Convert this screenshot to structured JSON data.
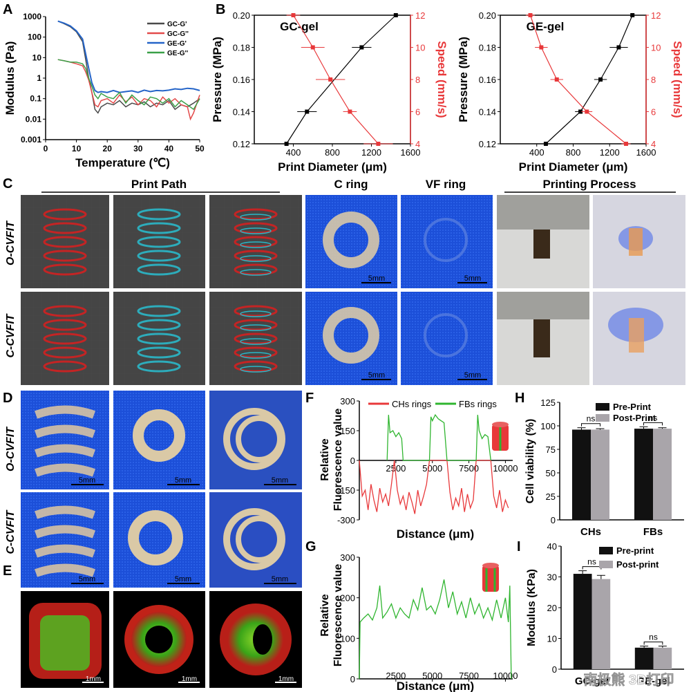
{
  "panels": {
    "A": "A",
    "B": "B",
    "C": "C",
    "D": "D",
    "E": "E",
    "F": "F",
    "G": "G",
    "H": "H",
    "I": "I"
  },
  "colors": {
    "gc_gp": "#4a4a4a",
    "gc_gpp": "#e34a4a",
    "ge_gp": "#2464c8",
    "ge_gpp": "#3aa048",
    "red": "#e8383a",
    "green": "#2fb52f",
    "black": "#111111",
    "gray": "#a9a5aa"
  },
  "panel_c": {
    "print_path": "Print Path",
    "c_ring": "C ring",
    "vf_ring": "VF ring",
    "printing_process": "Printing Process",
    "row1": "O-CVFIT",
    "row2": "C-CVFIT",
    "scale": "5mm"
  },
  "panel_d": {
    "row1": "O-CVFIT",
    "row2": "C-CVFIT",
    "scale": "5mm"
  },
  "panel_e": {
    "scale": "1mm"
  },
  "watermark": "南极熊 3D打印",
  "chart_data": [
    {
      "id": "A",
      "type": "line",
      "xlabel": "Temperature (℃)",
      "ylabel": "Modulus (Pa)",
      "xlim": [
        0,
        50
      ],
      "ylim": [
        0.001,
        1000
      ],
      "yscale": "log",
      "xticks": [
        0,
        10,
        20,
        30,
        40,
        50
      ],
      "yticks": [
        "0.001",
        "0.01",
        "0.1",
        "1",
        "10",
        "100",
        "1000"
      ],
      "legend": [
        "GC-G'",
        "GC-G''",
        "GE-G'",
        "GE-G''"
      ],
      "series": [
        {
          "name": "GC-G'",
          "x": [
            4,
            6,
            8,
            10,
            12,
            13,
            14,
            15,
            16,
            17,
            18,
            20,
            22,
            24,
            26,
            28,
            30,
            32,
            34,
            36,
            38,
            40,
            42,
            44,
            46,
            48,
            50
          ],
          "y": [
            600,
            450,
            320,
            180,
            60,
            8,
            1,
            0.2,
            0.03,
            0.02,
            0.04,
            0.06,
            0.05,
            0.08,
            0.04,
            0.06,
            0.05,
            0.07,
            0.04,
            0.06,
            0.05,
            0.08,
            0.03,
            0.05,
            0.04,
            0.06,
            0.1
          ]
        },
        {
          "name": "GC-G''",
          "x": [
            4,
            6,
            8,
            10,
            12,
            13,
            14,
            15,
            16,
            17,
            18,
            20,
            22,
            24,
            26,
            28,
            30,
            32,
            34,
            36,
            38,
            40,
            42,
            44,
            46,
            47,
            48,
            50
          ],
          "y": [
            8,
            7,
            6,
            5,
            4,
            2,
            0.8,
            0.2,
            0.05,
            0.04,
            0.08,
            0.1,
            0.06,
            0.15,
            0.07,
            0.12,
            0.05,
            0.1,
            0.08,
            0.04,
            0.12,
            0.06,
            0.1,
            0.05,
            0.04,
            0.01,
            0.02,
            0.15
          ]
        },
        {
          "name": "GE-G'",
          "x": [
            4,
            6,
            8,
            10,
            12,
            13,
            14,
            15,
            16,
            17,
            18,
            20,
            22,
            24,
            26,
            28,
            30,
            32,
            34,
            36,
            38,
            40,
            42,
            44,
            46,
            48,
            50
          ],
          "y": [
            600,
            480,
            350,
            200,
            80,
            15,
            3,
            0.6,
            0.25,
            0.2,
            0.22,
            0.2,
            0.25,
            0.2,
            0.22,
            0.24,
            0.2,
            0.26,
            0.22,
            0.25,
            0.24,
            0.26,
            0.3,
            0.28,
            0.32,
            0.3,
            0.25
          ]
        },
        {
          "name": "GE-G''",
          "x": [
            4,
            6,
            8,
            10,
            12,
            13,
            14,
            15,
            16,
            17,
            18,
            20,
            22,
            24,
            26,
            28,
            30,
            32,
            34,
            36,
            38,
            40,
            42,
            44,
            46,
            48,
            50
          ],
          "y": [
            8,
            7,
            6,
            6,
            5,
            3,
            1,
            0.4,
            0.15,
            0.1,
            0.18,
            0.12,
            0.1,
            0.2,
            0.06,
            0.15,
            0.08,
            0.05,
            0.12,
            0.1,
            0.06,
            0.1,
            0.04,
            0.08,
            0.05,
            0.03,
            0.1
          ]
        }
      ]
    },
    {
      "id": "B1",
      "type": "scatter",
      "title": "GC-gel",
      "xlabel": "Print Diameter (μm)",
      "ylabel": "Pressure (MPa)",
      "y2label": "Speed (mm/s)",
      "xlim": [
        0,
        1600
      ],
      "ylim": [
        0.12,
        0.2
      ],
      "y2lim": [
        4,
        12
      ],
      "xticks": [
        400,
        800,
        1200,
        1600
      ],
      "yticks": [
        "0.12",
        "0.14",
        "0.16",
        "0.18",
        "0.20"
      ],
      "y2ticks": [
        "4",
        "6",
        "8",
        "10",
        "12"
      ],
      "series": [
        {
          "name": "Pressure",
          "x": [
            330,
            540,
            1100,
            1450
          ],
          "y": [
            0.12,
            0.14,
            0.18,
            0.2
          ],
          "xerr": [
            50,
            100,
            100,
            100
          ]
        },
        {
          "name": "Speed",
          "x": [
            1270,
            980,
            780,
            600,
            400
          ],
          "y": [
            4,
            6,
            8,
            10,
            12
          ],
          "xerr": [
            150,
            70,
            150,
            120,
            70
          ]
        }
      ]
    },
    {
      "id": "B2",
      "type": "scatter",
      "title": "GE-gel",
      "xlabel": "Print Diameter (μm)",
      "ylabel": "Pressure (MPa)",
      "y2label": "Speed (mm/s)",
      "xlim": [
        0,
        1600
      ],
      "ylim": [
        0.12,
        0.2
      ],
      "y2lim": [
        4,
        12
      ],
      "xticks": [
        400,
        800,
        1200,
        1600
      ],
      "yticks": [
        "0.12",
        "0.14",
        "0.16",
        "0.18",
        "0.20"
      ],
      "y2ticks": [
        "4",
        "6",
        "8",
        "10",
        "12"
      ],
      "series": [
        {
          "name": "Pressure",
          "x": [
            500,
            880,
            1100,
            1300,
            1450
          ],
          "y": [
            0.12,
            0.14,
            0.16,
            0.18,
            0.2
          ],
          "xerr": [
            40,
            60,
            70,
            100,
            100
          ]
        },
        {
          "name": "Speed",
          "x": [
            1380,
            950,
            620,
            450,
            330
          ],
          "y": [
            4,
            6,
            8,
            10,
            12
          ],
          "xerr": [
            50,
            60,
            70,
            70,
            50
          ]
        }
      ]
    },
    {
      "id": "F",
      "type": "line",
      "ylabel": "Relative Fluorescence value",
      "xlabel": "Distance (μm)",
      "xlim": [
        0,
        10500
      ],
      "ylim": [
        -300,
        300
      ],
      "xticks": [
        "2500",
        "5000",
        "7500",
        "10000"
      ],
      "yticks": [
        "-300",
        "-150",
        "0",
        "150",
        "300"
      ],
      "legend": [
        "CHs rings",
        "FBs rings"
      ],
      "series": [
        {
          "name": "CHs rings",
          "x": [
            0,
            200,
            400,
            600,
            800,
            1000,
            1200,
            1400,
            1600,
            1800,
            2000,
            2200,
            2400,
            2600,
            2800,
            3000,
            3200,
            3400,
            3600,
            3800,
            4000,
            4200,
            4400,
            4600,
            4800,
            6000,
            6200,
            6400,
            6600,
            6800,
            7000,
            7200,
            7400,
            7600,
            7800,
            8000,
            9000,
            9200,
            9400,
            9600,
            9800,
            10000,
            10200
          ],
          "y": [
            0,
            -180,
            -150,
            -250,
            -120,
            -200,
            -260,
            -140,
            -210,
            -170,
            -230,
            -120,
            0,
            -150,
            -220,
            -180,
            -250,
            -160,
            -210,
            -270,
            -150,
            -230,
            -180,
            -120,
            0,
            0,
            -160,
            -250,
            -190,
            -230,
            -140,
            -260,
            -170,
            -240,
            -200,
            0,
            0,
            -180,
            -240,
            -150,
            -260,
            -200,
            -240
          ]
        },
        {
          "name": "FBs rings",
          "x": [
            1900,
            2000,
            2100,
            2300,
            2500,
            2700,
            2900,
            3000,
            4800,
            4900,
            5000,
            5200,
            5400,
            5600,
            5800,
            6000,
            8000,
            8100,
            8200,
            8400,
            8600,
            8800,
            9000
          ],
          "y": [
            0,
            230,
            140,
            150,
            120,
            140,
            110,
            0,
            0,
            220,
            200,
            230,
            210,
            200,
            190,
            0,
            0,
            230,
            150,
            110,
            130,
            120,
            0
          ]
        }
      ]
    },
    {
      "id": "G",
      "type": "line",
      "ylabel": "Relative Fluorescence value",
      "xlabel": "Distance (μm)",
      "xlim": [
        0,
        10500
      ],
      "ylim": [
        0,
        300
      ],
      "xticks": [
        "2500",
        "5000",
        "7500",
        "10000"
      ],
      "yticks": [
        "0",
        "100",
        "200",
        "300"
      ],
      "series": [
        {
          "name": "",
          "x": [
            0,
            50,
            300,
            600,
            900,
            1200,
            1400,
            1600,
            1900,
            2200,
            2500,
            2800,
            3100,
            3400,
            3700,
            4000,
            4300,
            4600,
            4900,
            5200,
            5500,
            5800,
            6100,
            6400,
            6700,
            7000,
            7300,
            7600,
            7900,
            8200,
            8500,
            8800,
            9100,
            9400,
            9700,
            10000,
            10200,
            10300,
            10400
          ],
          "y": [
            0,
            140,
            150,
            160,
            145,
            175,
            230,
            150,
            165,
            185,
            150,
            175,
            160,
            150,
            195,
            170,
            225,
            170,
            180,
            160,
            195,
            245,
            175,
            215,
            160,
            190,
            150,
            200,
            160,
            185,
            150,
            175,
            145,
            195,
            150,
            200,
            140,
            230,
            0
          ]
        }
      ]
    },
    {
      "id": "H",
      "type": "bar",
      "categories": [
        "CHs",
        "FBs"
      ],
      "ylabel": "Cell viability (%)",
      "ylim": [
        0,
        125
      ],
      "yticks": [
        "0",
        "25",
        "50",
        "75",
        "100",
        "125"
      ],
      "legend": [
        "Pre-Print",
        "Post-Print"
      ],
      "annotation": "ns",
      "series": [
        {
          "name": "Pre-Print",
          "values": [
            96,
            97
          ],
          "err": [
            2,
            2
          ]
        },
        {
          "name": "Post-Print",
          "values": [
            96,
            97
          ],
          "err": [
            1,
            1
          ]
        }
      ]
    },
    {
      "id": "I",
      "type": "bar",
      "categories": [
        "GC-gel",
        "GE-gel"
      ],
      "ylabel": "Modulus (KPa)",
      "ylim": [
        0,
        40
      ],
      "yticks": [
        "0",
        "10",
        "20",
        "30",
        "40"
      ],
      "legend": [
        "Pre-print",
        "Post-print"
      ],
      "annotation": "ns",
      "series": [
        {
          "name": "Pre-print",
          "values": [
            31,
            7
          ],
          "err": [
            1,
            0.5
          ]
        },
        {
          "name": "Post-print",
          "values": [
            29.3,
            7
          ],
          "err": [
            1.2,
            0.5
          ]
        }
      ]
    }
  ]
}
